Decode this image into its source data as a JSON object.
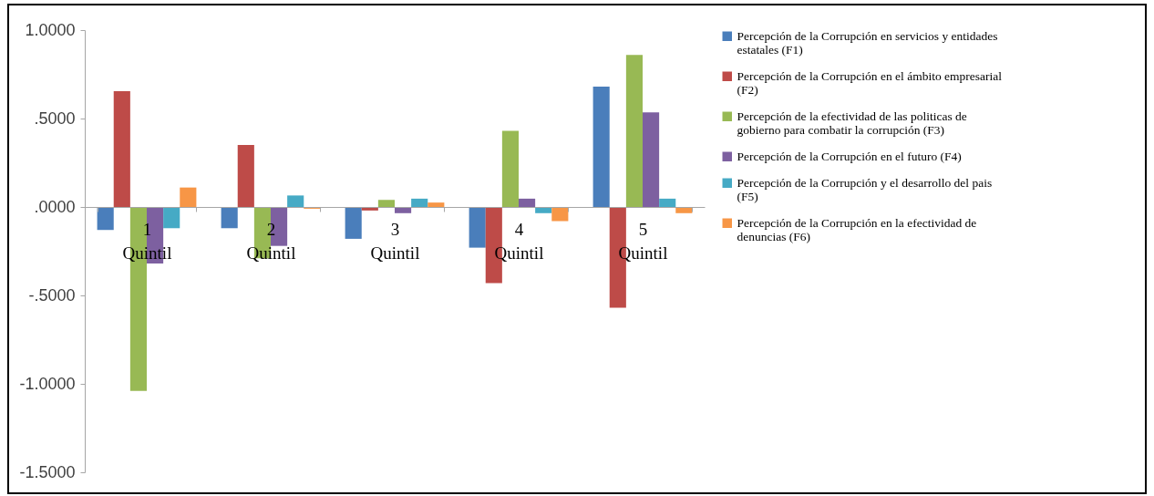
{
  "chart_data": {
    "type": "bar",
    "categories": [
      "1 Quintil",
      "2 Quintil",
      "3 Quintil",
      "4 Quintil",
      "5 Quintil"
    ],
    "series": [
      {
        "name": "Percepción de la Corrupción en servicios y entidades estatales (F1)",
        "color": "#4a7ebb",
        "values": [
          -0.13,
          -0.12,
          -0.18,
          -0.23,
          0.68
        ]
      },
      {
        "name": "Percepción de la Corrupción en el ámbito empresarial (F2)",
        "color": "#be4b48",
        "values": [
          0.655,
          0.35,
          -0.02,
          -0.43,
          -0.57
        ]
      },
      {
        "name": "Percepción de la efectividad de las politicas de gobierno para combatir la corrupción (F3)",
        "color": "#98b954",
        "values": [
          -1.04,
          -0.29,
          0.04,
          0.43,
          0.86
        ]
      },
      {
        "name": "Percepción de la Corrupción en el futuro (F4)",
        "color": "#7d60a0",
        "values": [
          -0.32,
          -0.22,
          -0.035,
          0.047,
          0.535
        ]
      },
      {
        "name": "Percepción de la Corrupción y el desarrollo del pais (F5)",
        "color": "#46aac5",
        "values": [
          -0.12,
          0.065,
          0.047,
          -0.035,
          0.047
        ]
      },
      {
        "name": "Percepción de la Corrupción en la efectividad de denuncias (F6)",
        "color": "#f79646",
        "values": [
          0.11,
          -0.01,
          0.025,
          -0.08,
          -0.035
        ]
      }
    ],
    "ylim": [
      -1.5,
      1.0
    ],
    "yticks": [
      {
        "value": -1.5,
        "label": "-1.5000"
      },
      {
        "value": -1.0,
        "label": "-1.0000"
      },
      {
        "value": -0.5,
        "label": "-.5000"
      },
      {
        "value": 0,
        "label": ".0000"
      },
      {
        "value": 0.5,
        "label": ".5000"
      },
      {
        "value": 1.0,
        "label": "1.0000"
      }
    ],
    "grid": false,
    "legend": "right"
  }
}
